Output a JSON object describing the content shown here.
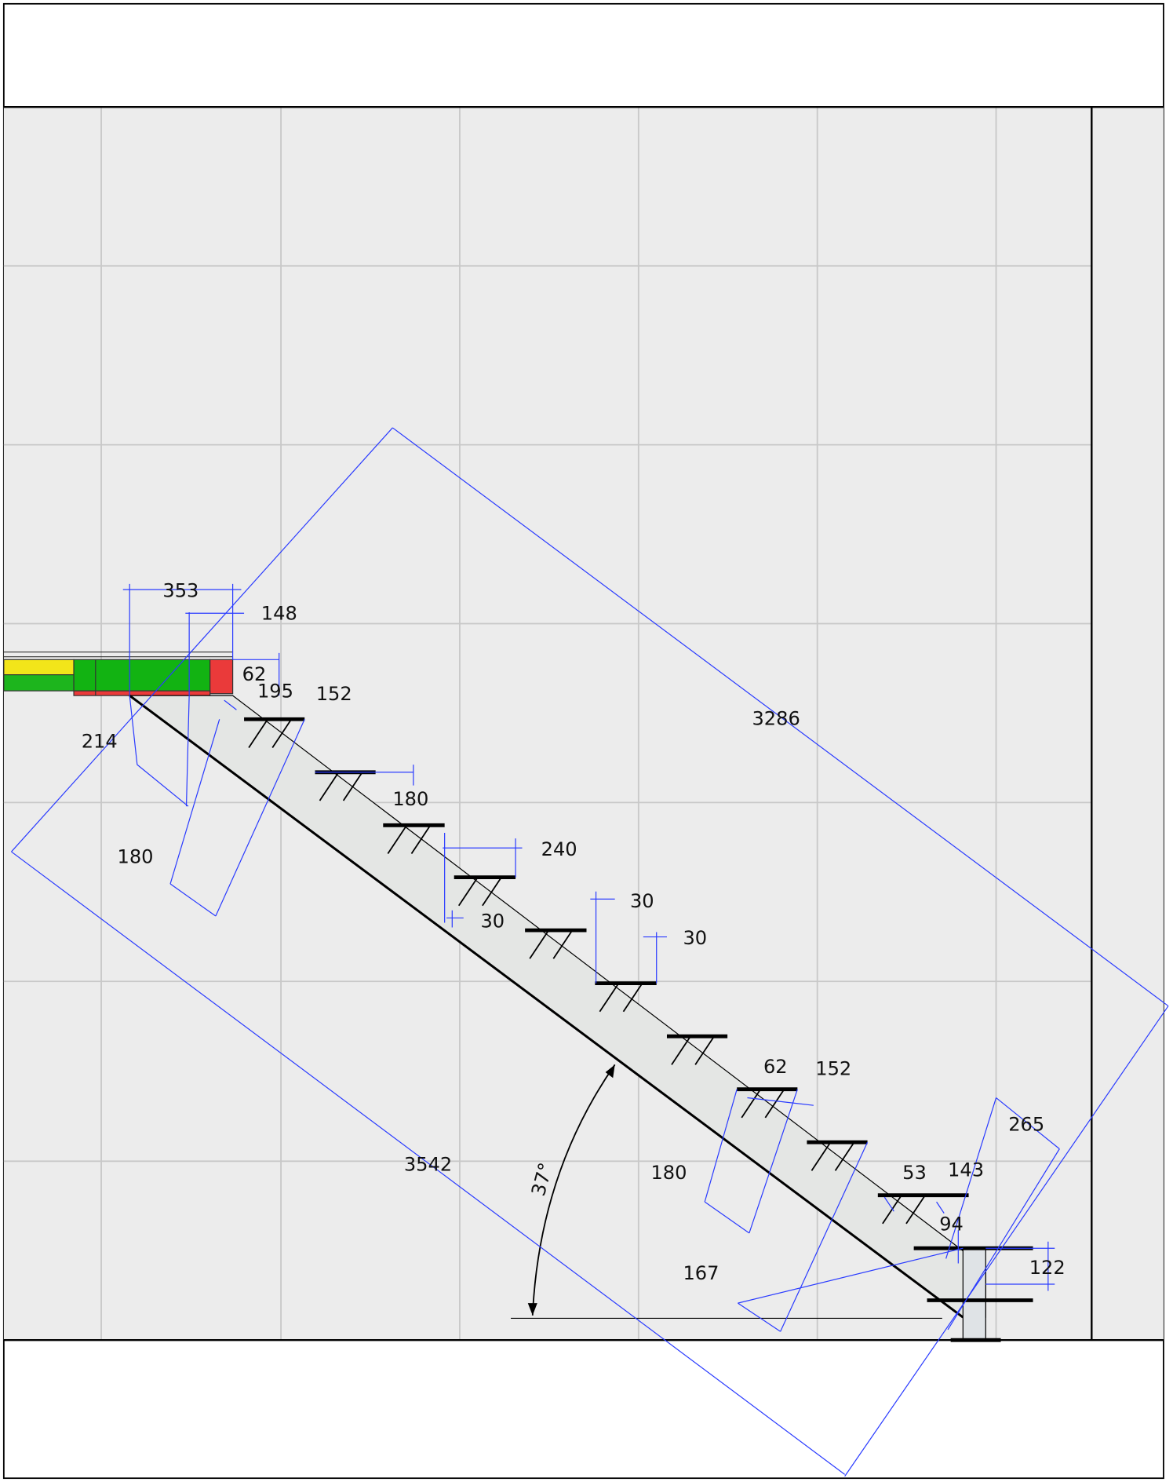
{
  "dimensions": [
    "353",
    "148",
    "62",
    "195",
    "152",
    "214",
    "180",
    "180",
    "240",
    "30",
    "30",
    "30",
    "3286",
    "3542",
    "37°",
    "62",
    "152",
    "265",
    "53",
    "143",
    "94",
    "122",
    "180",
    "167"
  ]
}
